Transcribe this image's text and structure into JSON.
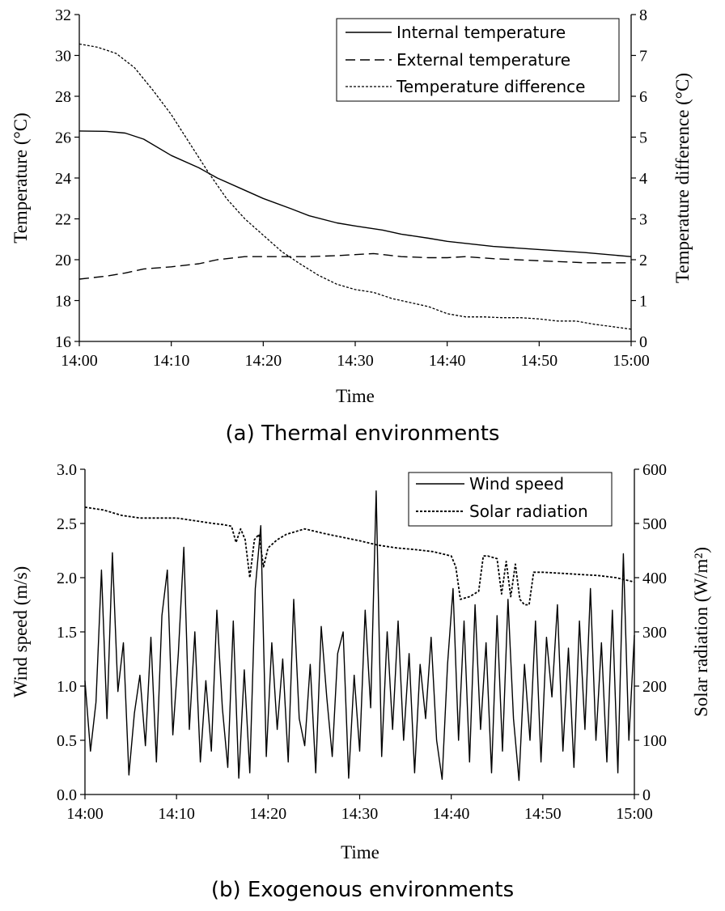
{
  "chart_data": [
    {
      "type": "line",
      "caption": "(a) Thermal environments",
      "xlabel": "Time",
      "ylabel": "Temperature (°C)",
      "y2label": "Temperature difference (°C)",
      "x_ticks": [
        "14:00",
        "14:10",
        "14:20",
        "14:30",
        "14:40",
        "14:50",
        "15:00"
      ],
      "ylim": [
        16,
        32
      ],
      "y_ticks": [
        "16",
        "18",
        "20",
        "22",
        "24",
        "26",
        "28",
        "30",
        "32"
      ],
      "y2lim": [
        0,
        8
      ],
      "y2_ticks": [
        "0",
        "1",
        "2",
        "3",
        "4",
        "5",
        "6",
        "7",
        "8"
      ],
      "legend_position": "top-right",
      "series": [
        {
          "name": "Internal temperature",
          "axis": "left",
          "style": "solid",
          "x_minutes": [
            0,
            3,
            5,
            7,
            10,
            13,
            15,
            18,
            20,
            23,
            25,
            28,
            30,
            33,
            35,
            38,
            40,
            45,
            50,
            55,
            60
          ],
          "values": [
            26.3,
            26.28,
            26.2,
            25.9,
            25.1,
            24.5,
            24.0,
            23.4,
            23.0,
            22.5,
            22.15,
            21.8,
            21.65,
            21.45,
            21.25,
            21.05,
            20.9,
            20.65,
            20.5,
            20.35,
            20.15
          ]
        },
        {
          "name": "External temperature",
          "axis": "left",
          "style": "dashed",
          "x_minutes": [
            0,
            3,
            5,
            7,
            10,
            13,
            15,
            18,
            20,
            25,
            28,
            30,
            32,
            35,
            38,
            40,
            42,
            45,
            50,
            55,
            60
          ],
          "values": [
            19.05,
            19.2,
            19.35,
            19.55,
            19.65,
            19.8,
            20.0,
            20.15,
            20.15,
            20.15,
            20.2,
            20.25,
            20.3,
            20.15,
            20.1,
            20.1,
            20.15,
            20.05,
            19.95,
            19.85,
            19.85
          ]
        },
        {
          "name": "Temperature difference",
          "axis": "right",
          "style": "dotted",
          "x_minutes": [
            0,
            2,
            4,
            6,
            8,
            10,
            12,
            14,
            16,
            18,
            20,
            22,
            24,
            26,
            28,
            30,
            32,
            34,
            36,
            38,
            40,
            42,
            44,
            46,
            48,
            50,
            52,
            54,
            56,
            58,
            60
          ],
          "values": [
            7.28,
            7.2,
            7.05,
            6.7,
            6.15,
            5.55,
            4.85,
            4.15,
            3.5,
            3.0,
            2.6,
            2.2,
            1.9,
            1.62,
            1.4,
            1.27,
            1.2,
            1.05,
            0.95,
            0.85,
            0.68,
            0.6,
            0.6,
            0.58,
            0.58,
            0.55,
            0.5,
            0.5,
            0.42,
            0.36,
            0.3
          ]
        }
      ]
    },
    {
      "type": "line",
      "caption": "(b) Exogenous environments",
      "xlabel": "Time",
      "ylabel": "Wind speed (m/s)",
      "y2label": "Solar radiation (W/m²)",
      "x_ticks": [
        "14:00",
        "14:10",
        "14:20",
        "14:30",
        "14:40",
        "14:50",
        "15:00"
      ],
      "ylim": [
        0,
        3
      ],
      "y_ticks": [
        "0.0",
        "0.5",
        "1.0",
        "1.5",
        "2.0",
        "2.5",
        "3.0"
      ],
      "y2lim": [
        0,
        600
      ],
      "y2_ticks": [
        "0",
        "100",
        "200",
        "300",
        "400",
        "500",
        "600"
      ],
      "legend_position": "top-right",
      "series": [
        {
          "name": "Wind speed",
          "axis": "left",
          "style": "solid",
          "x_minutes": [
            0,
            0.6,
            1.2,
            1.8,
            2.4,
            3.0,
            3.6,
            4.2,
            4.8,
            5.4,
            6.0,
            6.6,
            7.2,
            7.8,
            8.4,
            9.0,
            9.6,
            10.2,
            10.8,
            11.4,
            12.0,
            12.6,
            13.2,
            13.8,
            14.4,
            15.0,
            15.6,
            16.2,
            16.8,
            17.4,
            18.0,
            18.6,
            19.2,
            19.8,
            20.4,
            21.0,
            21.6,
            22.2,
            22.8,
            23.4,
            24.0,
            24.6,
            25.2,
            25.8,
            26.4,
            27.0,
            27.6,
            28.2,
            28.8,
            29.4,
            30.0,
            30.6,
            31.2,
            31.8,
            32.4,
            33.0,
            33.6,
            34.2,
            34.8,
            35.4,
            36.0,
            36.6,
            37.2,
            37.8,
            38.4,
            39.0,
            39.6,
            40.2,
            40.8,
            41.4,
            42.0,
            42.6,
            43.2,
            43.8,
            44.4,
            45.0,
            45.6,
            46.2,
            46.8,
            47.4,
            48.0,
            48.6,
            49.2,
            49.8,
            50.4,
            51.0,
            51.6,
            52.2,
            52.8,
            53.4,
            54.0,
            54.6,
            55.2,
            55.8,
            56.4,
            57.0,
            57.6,
            58.2,
            58.8,
            59.4,
            60.0
          ],
          "values": [
            1.05,
            0.4,
            0.85,
            2.07,
            0.7,
            2.23,
            0.95,
            1.4,
            0.18,
            0.75,
            1.1,
            0.45,
            1.45,
            0.3,
            1.65,
            2.07,
            0.55,
            1.3,
            2.28,
            0.6,
            1.5,
            0.3,
            1.05,
            0.4,
            1.7,
            0.8,
            0.25,
            1.6,
            0.15,
            1.15,
            0.2,
            1.9,
            2.48,
            0.35,
            1.4,
            0.6,
            1.25,
            0.3,
            1.8,
            0.7,
            0.45,
            1.2,
            0.2,
            1.55,
            0.9,
            0.35,
            1.3,
            1.5,
            0.15,
            1.1,
            0.4,
            1.7,
            0.8,
            2.8,
            0.35,
            1.5,
            0.6,
            1.6,
            0.5,
            1.3,
            0.2,
            1.2,
            0.7,
            1.45,
            0.5,
            0.14,
            1.2,
            1.9,
            0.5,
            1.6,
            0.3,
            1.75,
            0.6,
            1.4,
            0.2,
            1.65,
            0.4,
            1.8,
            0.7,
            0.13,
            1.2,
            0.5,
            1.6,
            0.3,
            1.45,
            0.9,
            1.75,
            0.4,
            1.35,
            0.25,
            1.6,
            0.6,
            1.9,
            0.5,
            1.4,
            0.3,
            1.7,
            0.2,
            2.22,
            0.5,
            1.47
          ]
        },
        {
          "name": "Solar radiation",
          "axis": "right",
          "style": "dotted",
          "x_minutes": [
            0,
            2,
            4,
            6,
            8,
            10,
            12,
            14,
            15,
            16,
            16.5,
            17,
            17.5,
            18,
            18.5,
            19,
            19.5,
            20,
            21,
            22,
            24,
            26,
            28,
            30,
            32,
            34,
            36,
            38,
            40,
            40.5,
            41,
            42,
            43,
            43.5,
            44,
            45,
            45.5,
            46,
            46.5,
            47,
            47.5,
            48,
            48.5,
            49,
            50,
            52,
            54,
            56,
            58,
            60
          ],
          "values": [
            530,
            525,
            515,
            510,
            510,
            510,
            505,
            500,
            498,
            495,
            465,
            490,
            470,
            400,
            470,
            480,
            420,
            455,
            470,
            480,
            490,
            482,
            475,
            468,
            460,
            455,
            452,
            448,
            440,
            420,
            360,
            365,
            375,
            440,
            440,
            435,
            370,
            430,
            365,
            425,
            360,
            350,
            350,
            410,
            410,
            408,
            406,
            404,
            400,
            392
          ]
        }
      ]
    }
  ]
}
